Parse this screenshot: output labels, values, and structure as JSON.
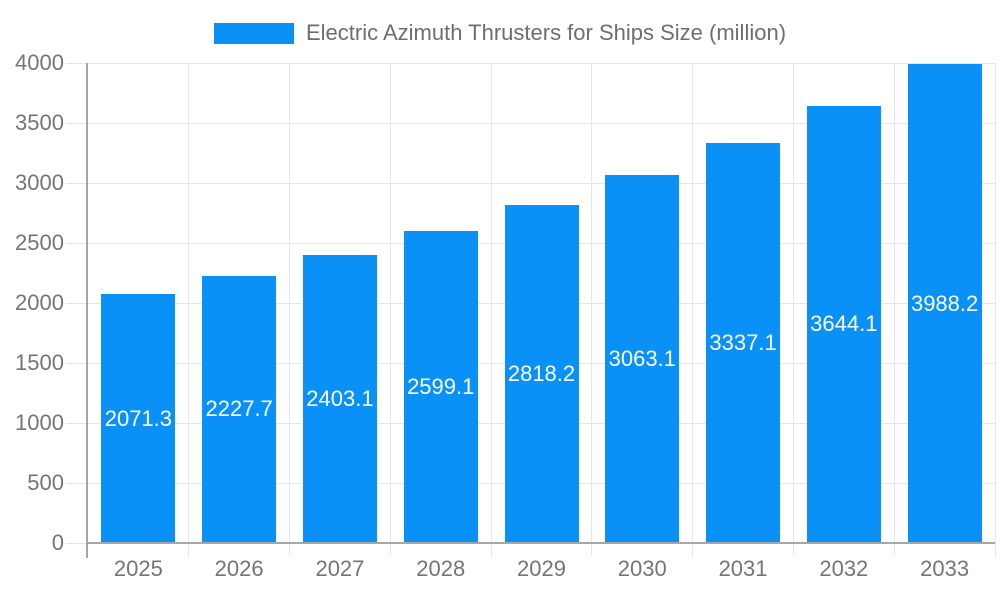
{
  "legend": {
    "label": "Electric Azimuth Thrusters for Ships Size (million)"
  },
  "chart_data": {
    "type": "bar",
    "title": "Electric Azimuth Thrusters for Ships Size (million)",
    "series_name": "Electric Azimuth Thrusters for Ships Size (million)",
    "categories": [
      "2025",
      "2026",
      "2027",
      "2028",
      "2029",
      "2030",
      "2031",
      "2032",
      "2033"
    ],
    "values": [
      2071.3,
      2227.7,
      2403.1,
      2599.1,
      2818.2,
      3063.1,
      3337.1,
      3644.1,
      3988.2
    ],
    "value_labels": [
      "2071.3",
      "2227.7",
      "2403.1",
      "2599.1",
      "2818.2",
      "3063.1",
      "3337.1",
      "3644.1",
      "3988.2"
    ],
    "xlabel": "",
    "ylabel": "",
    "ylim": [
      0,
      4000
    ],
    "y_ticks": [
      "0",
      "500",
      "1000",
      "1500",
      "2000",
      "2500",
      "3000",
      "3500",
      "4000"
    ],
    "grid": true,
    "legend_position": "top-center",
    "value_label_position": "center-of-bar",
    "colors": {
      "bar": "#0991f7",
      "value_label": "#ffffff",
      "axis_label": "#757575",
      "legend_text": "#6e6e6e",
      "gridline": "#e6e6e6",
      "axis_line": "#a6a6a6",
      "background": "#ffffff"
    }
  }
}
